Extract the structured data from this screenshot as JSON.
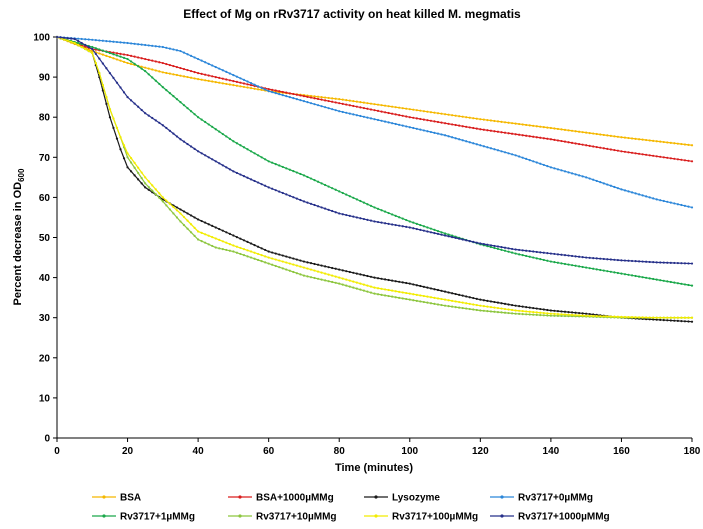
{
  "chart_data": {
    "type": "line",
    "title": "Effect of Mg on rRv3717 activity on heat killed M. megmatis",
    "xlabel": "Time (minutes)",
    "ylabel_main": "Percent decrease in OD",
    "ylabel_sub": "600",
    "xlim": [
      0,
      180
    ],
    "ylim": [
      0,
      100
    ],
    "x_ticks": [
      0,
      20,
      40,
      60,
      80,
      100,
      120,
      140,
      160,
      180
    ],
    "y_ticks": [
      0,
      10,
      20,
      30,
      40,
      50,
      60,
      70,
      80,
      90,
      100
    ],
    "grid": false,
    "legend_position": "bottom",
    "series": [
      {
        "name": "BSA",
        "color": "#f5b800",
        "points": [
          [
            0,
            100
          ],
          [
            10,
            96.5
          ],
          [
            20,
            93.5
          ],
          [
            30,
            91.2
          ],
          [
            40,
            89.5
          ],
          [
            60,
            86.5
          ],
          [
            80,
            84.5
          ],
          [
            100,
            82
          ],
          [
            120,
            79.5
          ],
          [
            140,
            77.3
          ],
          [
            160,
            75
          ],
          [
            180,
            73
          ]
        ]
      },
      {
        "name": "BSA+1000µMMg",
        "color": "#d91e1e",
        "points": [
          [
            0,
            100
          ],
          [
            10,
            97
          ],
          [
            20,
            95.5
          ],
          [
            30,
            93.5
          ],
          [
            40,
            91
          ],
          [
            60,
            87
          ],
          [
            80,
            83.5
          ],
          [
            100,
            80
          ],
          [
            120,
            77
          ],
          [
            140,
            74.5
          ],
          [
            160,
            71.5
          ],
          [
            180,
            69
          ]
        ]
      },
      {
        "name": "Lysozyme",
        "color": "#1a1a1a",
        "points": [
          [
            0,
            100
          ],
          [
            5,
            98.5
          ],
          [
            10,
            96
          ],
          [
            12,
            90
          ],
          [
            15,
            80
          ],
          [
            18,
            72
          ],
          [
            20,
            67.5
          ],
          [
            25,
            62.5
          ],
          [
            30,
            59.5
          ],
          [
            35,
            57
          ],
          [
            40,
            54.5
          ],
          [
            50,
            50.5
          ],
          [
            60,
            46.5
          ],
          [
            70,
            44
          ],
          [
            80,
            42
          ],
          [
            90,
            40
          ],
          [
            100,
            38.5
          ],
          [
            110,
            36.5
          ],
          [
            120,
            34.5
          ],
          [
            130,
            33
          ],
          [
            140,
            31.8
          ],
          [
            150,
            31
          ],
          [
            160,
            30
          ],
          [
            170,
            29.5
          ],
          [
            180,
            29
          ]
        ]
      },
      {
        "name": "Rv3717+0µMMg",
        "color": "#2b86d9",
        "points": [
          [
            0,
            100
          ],
          [
            10,
            99.3
          ],
          [
            20,
            98.5
          ],
          [
            30,
            97.5
          ],
          [
            35,
            96.5
          ],
          [
            40,
            94.5
          ],
          [
            50,
            90.5
          ],
          [
            60,
            86.5
          ],
          [
            70,
            84
          ],
          [
            80,
            81.5
          ],
          [
            90,
            79.5
          ],
          [
            100,
            77.5
          ],
          [
            110,
            75.5
          ],
          [
            120,
            73
          ],
          [
            130,
            70.5
          ],
          [
            140,
            67.5
          ],
          [
            150,
            65
          ],
          [
            160,
            62
          ],
          [
            170,
            59.5
          ],
          [
            180,
            57.5
          ]
        ]
      },
      {
        "name": "Rv3717+1µMMg",
        "color": "#1aa84a",
        "points": [
          [
            0,
            100
          ],
          [
            10,
            97.5
          ],
          [
            15,
            96
          ],
          [
            20,
            94.5
          ],
          [
            25,
            91.5
          ],
          [
            30,
            87.5
          ],
          [
            40,
            80
          ],
          [
            50,
            74
          ],
          [
            60,
            69
          ],
          [
            70,
            65.5
          ],
          [
            80,
            61.5
          ],
          [
            90,
            57.5
          ],
          [
            100,
            54
          ],
          [
            110,
            51
          ],
          [
            120,
            48.3
          ],
          [
            130,
            46
          ],
          [
            140,
            44
          ],
          [
            150,
            42.5
          ],
          [
            160,
            41
          ],
          [
            170,
            39.5
          ],
          [
            180,
            38
          ]
        ]
      },
      {
        "name": "Rv3717+10µMMg",
        "color": "#8dc63f",
        "points": [
          [
            0,
            100
          ],
          [
            5,
            98.5
          ],
          [
            10,
            96
          ],
          [
            12,
            91
          ],
          [
            15,
            82
          ],
          [
            18,
            75
          ],
          [
            20,
            70
          ],
          [
            25,
            63.5
          ],
          [
            30,
            59
          ],
          [
            35,
            54
          ],
          [
            40,
            49.5
          ],
          [
            45,
            47.5
          ],
          [
            50,
            46.5
          ],
          [
            60,
            43.5
          ],
          [
            70,
            40.5
          ],
          [
            80,
            38.5
          ],
          [
            90,
            36
          ],
          [
            100,
            34.5
          ],
          [
            110,
            33
          ],
          [
            120,
            31.8
          ],
          [
            130,
            31
          ],
          [
            140,
            30.5
          ],
          [
            150,
            30.3
          ],
          [
            160,
            30
          ],
          [
            170,
            30
          ],
          [
            180,
            30
          ]
        ]
      },
      {
        "name": "Rv3717+100µMMg",
        "color": "#f2ec00",
        "points": [
          [
            0,
            100
          ],
          [
            5,
            98.5
          ],
          [
            10,
            96
          ],
          [
            12,
            91
          ],
          [
            15,
            82
          ],
          [
            18,
            75
          ],
          [
            20,
            71
          ],
          [
            25,
            65
          ],
          [
            30,
            60
          ],
          [
            35,
            56
          ],
          [
            40,
            51.5
          ],
          [
            50,
            48
          ],
          [
            60,
            45
          ],
          [
            70,
            42.5
          ],
          [
            80,
            40
          ],
          [
            90,
            37.5
          ],
          [
            100,
            36
          ],
          [
            110,
            34.5
          ],
          [
            120,
            33
          ],
          [
            130,
            31.8
          ],
          [
            140,
            31
          ],
          [
            150,
            30.5
          ],
          [
            160,
            30.2
          ],
          [
            170,
            30
          ],
          [
            180,
            30
          ]
        ]
      },
      {
        "name": "Rv3717+1000µMMg",
        "color": "#26308a",
        "points": [
          [
            0,
            100
          ],
          [
            5,
            99.5
          ],
          [
            10,
            97
          ],
          [
            15,
            91
          ],
          [
            20,
            85
          ],
          [
            25,
            81
          ],
          [
            30,
            78
          ],
          [
            35,
            74.5
          ],
          [
            40,
            71.5
          ],
          [
            50,
            66.5
          ],
          [
            60,
            62.5
          ],
          [
            70,
            59
          ],
          [
            80,
            56
          ],
          [
            90,
            54
          ],
          [
            100,
            52.5
          ],
          [
            110,
            50.5
          ],
          [
            120,
            48.5
          ],
          [
            130,
            47
          ],
          [
            140,
            46
          ],
          [
            150,
            45
          ],
          [
            160,
            44.3
          ],
          [
            170,
            43.8
          ],
          [
            180,
            43.5
          ]
        ]
      }
    ]
  }
}
